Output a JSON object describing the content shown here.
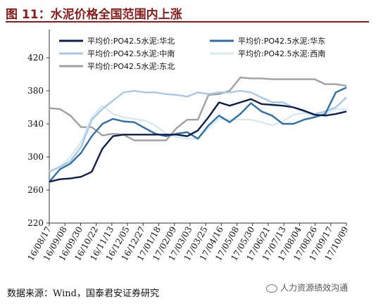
{
  "title": "图 11：水泥价格全国范围内上涨",
  "source": "数据来源：Wind，国泰君安证券研究",
  "watermark": "人力资源绩效沟通",
  "chart_data": {
    "type": "line",
    "xlabel": "",
    "ylabel": "",
    "ylim": [
      220,
      420
    ],
    "yticks": [
      220,
      260,
      300,
      340,
      380,
      420
    ],
    "x_tick_labels": [
      "16/08/17",
      "16/09/08",
      "16/09/30",
      "16/10/22",
      "16/11/13",
      "16/12/05",
      "16/12/27",
      "17/01/18",
      "17/02/09",
      "17/03/03",
      "17/03/25",
      "17/04/16",
      "17/05/08",
      "17/05/30",
      "17/06/21",
      "17/07/13",
      "17/08/04",
      "17/08/26",
      "17/09/17",
      "17/10/09"
    ],
    "grid": false,
    "legend_position": "top",
    "series": [
      {
        "name": "平均价:PO42.5水泥:华北",
        "color": "#0d1f4d",
        "width": 2.4,
        "values": [
          270,
          273,
          274,
          276,
          282,
          310,
          325,
          327,
          327,
          327,
          327,
          327,
          327,
          325,
          332,
          348,
          366,
          362,
          366,
          370,
          364,
          363,
          362,
          360,
          356,
          351,
          350,
          352,
          355
        ]
      },
      {
        "name": "平均价:PO42.5水泥:华东",
        "color": "#2e6fa8",
        "width": 2.4,
        "values": [
          270,
          285,
          292,
          305,
          325,
          340,
          346,
          343,
          342,
          335,
          328,
          325,
          328,
          330,
          322,
          338,
          350,
          342,
          352,
          365,
          355,
          350,
          340,
          340,
          345,
          348,
          352,
          378,
          384
        ]
      },
      {
        "name": "平均价:PO42.5水泥:中南",
        "color": "#a8c8e8",
        "width": 2.4,
        "values": [
          282,
          288,
          295,
          312,
          345,
          358,
          368,
          378,
          380,
          378,
          378,
          376,
          375,
          373,
          378,
          376,
          378,
          378,
          380,
          378,
          372,
          366,
          366,
          360,
          355,
          352,
          355,
          360,
          372
        ]
      },
      {
        "name": "平均价:PO42.5水泥:西南",
        "color": "#d8e8f5",
        "width": 2.4,
        "values": [
          283,
          288,
          300,
          318,
          348,
          362,
          352,
          348,
          346,
          344,
          338,
          328,
          324,
          322,
          322,
          335,
          346,
          345,
          345,
          345,
          342,
          338,
          343,
          351,
          353,
          350,
          352,
          358,
          357
        ]
      },
      {
        "name": "平均价:PO42.5水泥:东北",
        "color": "#a0a0a0",
        "width": 2.4,
        "values": [
          359,
          358,
          350,
          336,
          336,
          326,
          328,
          327,
          320,
          320,
          320,
          320,
          335,
          345,
          345,
          375,
          376,
          380,
          396,
          395,
          395,
          394,
          394,
          394,
          394,
          394,
          388,
          388,
          386
        ]
      }
    ]
  }
}
